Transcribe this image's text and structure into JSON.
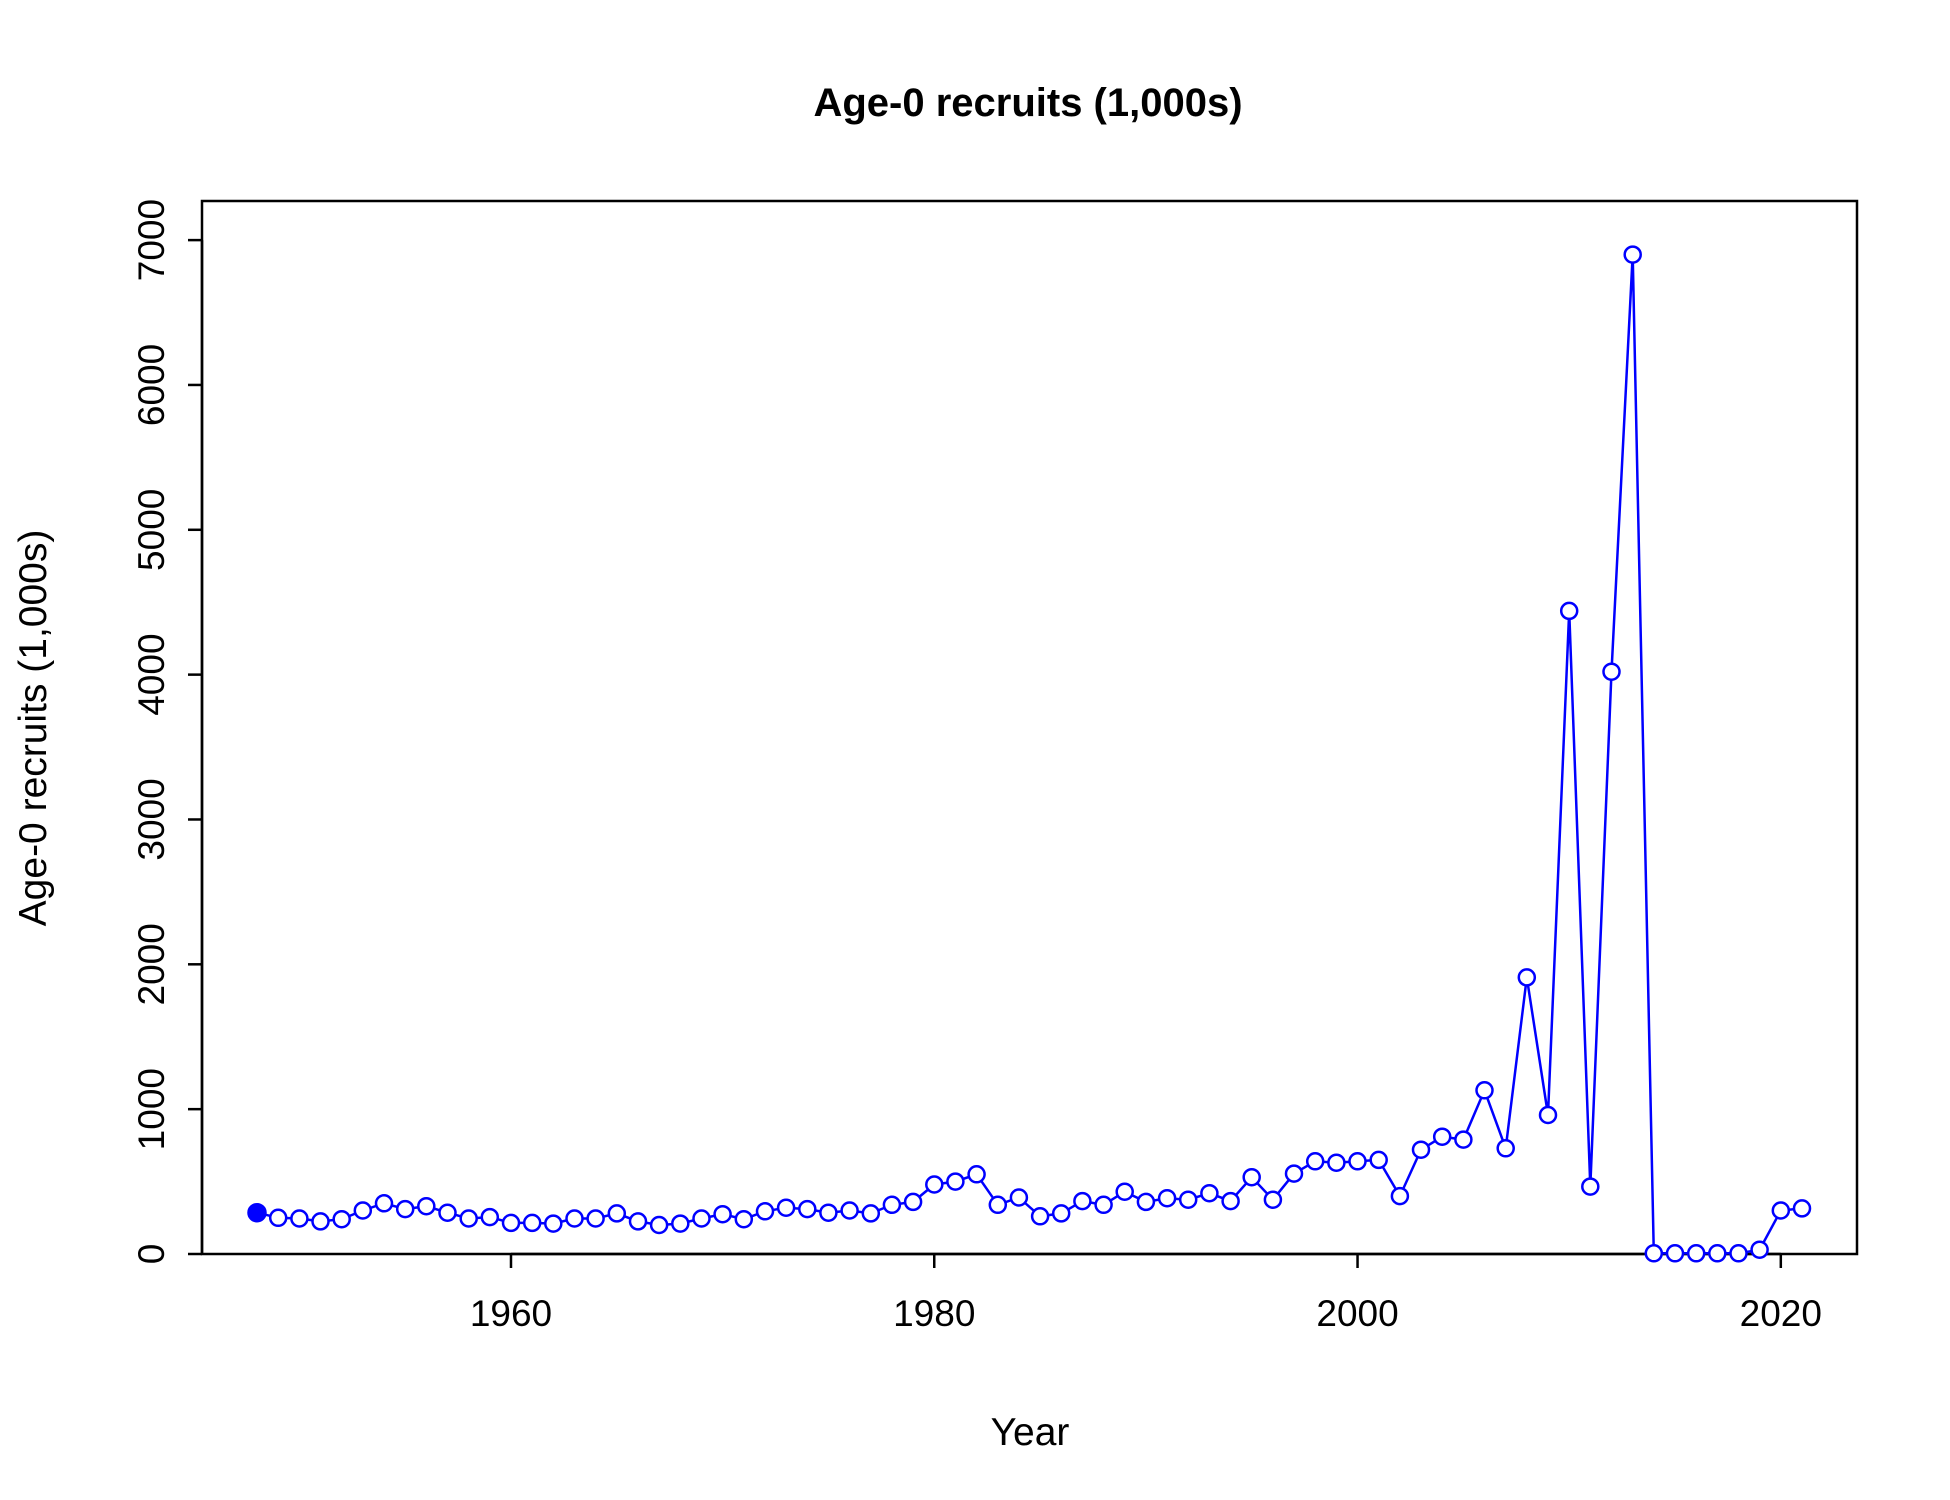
{
  "chart_data": {
    "type": "line",
    "title": "Age-0 recruits (1,000s)",
    "xlabel": "Year",
    "ylabel": "Age-0 recruits (1,000s)",
    "xlim": [
      1945.4,
      2023.6
    ],
    "ylim": [
      0,
      7270
    ],
    "x_ticks": [
      1960,
      1980,
      2000,
      2020
    ],
    "y_ticks": [
      0,
      1000,
      2000,
      3000,
      4000,
      5000,
      6000,
      7000
    ],
    "grid": false,
    "legend": "none",
    "line_color": "#0000ff",
    "series": [
      {
        "x": [
          1948,
          1949,
          1950,
          1951,
          1952,
          1953,
          1954,
          1955,
          1956,
          1957,
          1958,
          1959,
          1960,
          1961,
          1962,
          1963,
          1964,
          1965,
          1966,
          1967,
          1968,
          1969,
          1970,
          1971,
          1972,
          1973,
          1974,
          1975,
          1976,
          1977,
          1978,
          1979,
          1980,
          1981,
          1982,
          1983,
          1984,
          1985,
          1986,
          1987,
          1988,
          1989,
          1990,
          1991,
          1992,
          1993,
          1994,
          1995,
          1996,
          1997,
          1998,
          1999,
          2000,
          2001,
          2002,
          2003,
          2004,
          2005,
          2006,
          2007,
          2008,
          2009,
          2010,
          2011,
          2012,
          2013,
          2014,
          2015,
          2016,
          2017,
          2018,
          2019,
          2020,
          2021
        ],
        "y": [
          285,
          250,
          245,
          225,
          240,
          300,
          350,
          310,
          330,
          285,
          245,
          255,
          215,
          215,
          210,
          245,
          245,
          280,
          225,
          200,
          210,
          245,
          275,
          240,
          295,
          320,
          310,
          285,
          300,
          280,
          340,
          360,
          480,
          500,
          550,
          340,
          390,
          260,
          280,
          365,
          340,
          430,
          360,
          385,
          375,
          420,
          365,
          530,
          375,
          555,
          640,
          630,
          640,
          650,
          400,
          720,
          810,
          790,
          1130,
          730,
          1910,
          960,
          4440,
          465,
          4020,
          6900,
          5,
          5,
          5,
          5,
          5,
          30,
          300,
          315
        ],
        "first_point_filled": true
      }
    ]
  }
}
